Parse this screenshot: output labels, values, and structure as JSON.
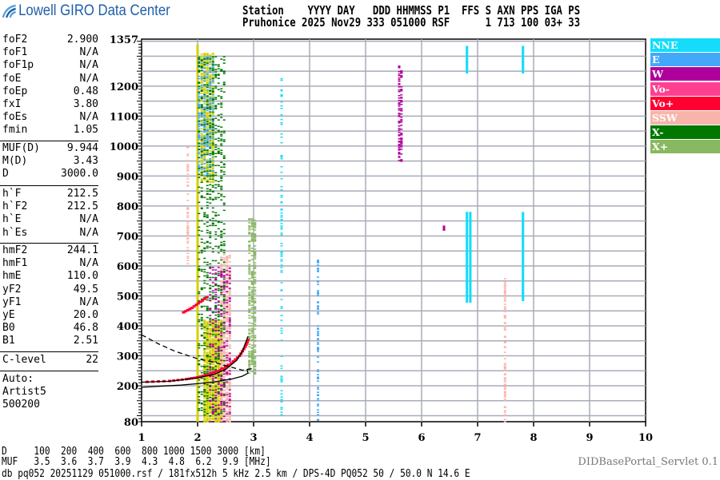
{
  "logo": {
    "text": "Lowell GIRO Data Center",
    "color": "#1f5fa8"
  },
  "header": {
    "line1": "Station    YYYY DAY   DDD HHMMSS P1  FFS S AXN PPS IGA PS",
    "line2": "Pruhonice 2025 Nov29 333 051000 RSF      1 713 100 03+ 33"
  },
  "params": [
    {
      "label": "foF2",
      "value": "2.900"
    },
    {
      "label": "foF1",
      "value": "N/A"
    },
    {
      "label": "foF1p",
      "value": "N/A"
    },
    {
      "label": "foE",
      "value": "N/A"
    },
    {
      "label": "foEp",
      "value": "0.48"
    },
    {
      "label": "fxI",
      "value": "3.80"
    },
    {
      "label": "foEs",
      "value": "N/A"
    },
    {
      "label": "fmin",
      "value": "1.05"
    },
    {
      "label": "MUF(D)",
      "value": "9.944"
    },
    {
      "label": "M(D)",
      "value": "3.43"
    },
    {
      "label": "D",
      "value": "3000.0"
    },
    {
      "label": "h`F",
      "value": "212.5"
    },
    {
      "label": "h`F2",
      "value": "212.5"
    },
    {
      "label": "h`E",
      "value": "N/A"
    },
    {
      "label": "h`Es",
      "value": "N/A"
    },
    {
      "label": "hmF2",
      "value": "244.1"
    },
    {
      "label": "hmF1",
      "value": "N/A"
    },
    {
      "label": "hmE",
      "value": "110.0"
    },
    {
      "label": "yF2",
      "value": "49.5"
    },
    {
      "label": "yF1",
      "value": "N/A"
    },
    {
      "label": "yE",
      "value": "20.0"
    },
    {
      "label": "B0",
      "value": "46.8"
    },
    {
      "label": "B1",
      "value": "2.51"
    },
    {
      "label": "C-level",
      "value": "22"
    }
  ],
  "autoscaling": [
    "Auto:",
    "Artist5",
    "500200"
  ],
  "legend": [
    {
      "label": "NNE",
      "color": "#14dcfa"
    },
    {
      "label": "E",
      "color": "#44a8f8"
    },
    {
      "label": "W",
      "color": "#b0009c"
    },
    {
      "label": "Vo-",
      "color": "#ff4090"
    },
    {
      "label": "Vo+",
      "color": "#ff0030"
    },
    {
      "label": "SSW",
      "color": "#f8b4aa"
    },
    {
      "label": "X-",
      "color": "#007800"
    },
    {
      "label": "X+",
      "color": "#88b860"
    }
  ],
  "bottom": {
    "d_row": "D     100  200  400  600  800 1000 1500 3000 [km]",
    "muf_row": "MUF   3.5  3.6  3.7  3.9  4.3  4.8  6.2  9.9 [MHz]",
    "info": "db pq052 20251129 051000.rsf / 181fx512h 5 kHz 2.5 km / DPS-4D PQ052 50 / 50.0 N 14.6 E",
    "servlet": "DIDBasePortal_Servlet 0.1"
  },
  "chart_data": {
    "type": "scatter",
    "xlim": [
      1,
      10
    ],
    "ylim": [
      80,
      1357
    ],
    "x_ticks": [
      "1",
      "2",
      "3",
      "4",
      "5",
      "6",
      "7",
      "8",
      "9",
      "10"
    ],
    "y_ticks": [
      "1357",
      "1200",
      "1100",
      "1000",
      "900",
      "800",
      "700",
      "600",
      "500",
      "400",
      "300",
      "200",
      "80"
    ],
    "grid": true,
    "legend_placement": "right",
    "extra_echo_color": "#d4d000",
    "echo_streaks": [
      {
        "pol": "yellow",
        "f": [
          1.97,
          2.03
        ],
        "h": [
          80,
          1340
        ],
        "density": 1.0
      },
      {
        "pol": "yellow",
        "f": [
          2.05,
          2.3
        ],
        "h": [
          880,
          1310
        ],
        "density": 0.6
      },
      {
        "pol": "yellow",
        "f": [
          2.1,
          2.45
        ],
        "h": [
          80,
          420
        ],
        "density": 0.8
      },
      {
        "pol": "SSW",
        "f": [
          2.4,
          2.6
        ],
        "h": [
          80,
          640
        ],
        "density": 0.5
      },
      {
        "pol": "SSW",
        "f": [
          1.8,
          1.85
        ],
        "h": [
          600,
          1000
        ],
        "density": 0.3
      },
      {
        "pol": "E",
        "f": [
          2.0,
          2.3
        ],
        "h": [
          900,
          1300
        ],
        "density": 0.3
      },
      {
        "pol": "X-",
        "f": [
          2.0,
          2.5
        ],
        "h": [
          100,
          1300
        ],
        "density": 0.15
      },
      {
        "pol": "W",
        "f": [
          2.2,
          2.6
        ],
        "h": [
          80,
          600
        ],
        "density": 0.15
      },
      {
        "pol": "NNE",
        "f": [
          3.47,
          3.53
        ],
        "h": [
          80,
          1230
        ],
        "density": 0.2
      },
      {
        "pol": "X+",
        "f": [
          2.9,
          3.05
        ],
        "h": [
          240,
          760
        ],
        "density": 0.4
      },
      {
        "pol": "E",
        "f": [
          4.12,
          4.18
        ],
        "h": [
          80,
          620
        ],
        "density": 0.25
      },
      {
        "pol": "W",
        "f": [
          5.58,
          5.66
        ],
        "h": [
          950,
          1270
        ],
        "density": 0.4
      },
      {
        "pol": "NNE",
        "f": [
          6.78,
          6.84
        ],
        "h": [
          1245,
          1335
        ],
        "density": 1.0
      },
      {
        "pol": "NNE",
        "f": [
          6.78,
          6.9
        ],
        "h": [
          480,
          780
        ],
        "density": 1.0
      },
      {
        "pol": "NNE",
        "f": [
          7.78,
          7.84
        ],
        "h": [
          1245,
          1335
        ],
        "density": 1.0
      },
      {
        "pol": "NNE",
        "f": [
          7.78,
          7.84
        ],
        "h": [
          485,
          780
        ],
        "density": 1.0
      },
      {
        "pol": "SSW",
        "f": [
          7.47,
          7.51
        ],
        "h": [
          80,
          560
        ],
        "density": 0.4
      },
      {
        "pol": "W",
        "f": [
          6.38,
          6.42
        ],
        "h": [
          720,
          735
        ],
        "density": 1.0
      }
    ],
    "o_trace": {
      "pol": "Vo+",
      "points": [
        [
          1.1,
          213
        ],
        [
          1.5,
          216
        ],
        [
          1.8,
          222
        ],
        [
          2.0,
          228
        ],
        [
          2.2,
          238
        ],
        [
          2.4,
          252
        ],
        [
          2.6,
          275
        ],
        [
          2.75,
          300
        ],
        [
          2.85,
          330
        ],
        [
          2.92,
          360
        ]
      ]
    },
    "es_trace": {
      "pol": "Vo+",
      "points": [
        [
          1.75,
          445
        ],
        [
          1.9,
          460
        ],
        [
          2.05,
          480
        ],
        [
          2.2,
          500
        ]
      ]
    },
    "profile_lines": [
      {
        "style": "solid",
        "points": [
          [
            1.0,
            212
          ],
          [
            1.5,
            215
          ],
          [
            2.0,
            226
          ],
          [
            2.3,
            238
          ],
          [
            2.5,
            255
          ],
          [
            2.7,
            285
          ],
          [
            2.8,
            315
          ],
          [
            2.9,
            365
          ]
        ]
      },
      {
        "style": "solid",
        "points": [
          [
            1.0,
            195
          ],
          [
            1.3,
            198
          ],
          [
            1.7,
            202
          ],
          [
            2.0,
            207
          ],
          [
            2.3,
            213
          ],
          [
            2.6,
            222
          ],
          [
            2.8,
            232
          ],
          [
            2.9,
            242
          ],
          [
            2.88,
            255
          ]
        ]
      },
      {
        "style": "dashed",
        "points": [
          [
            1.0,
            370
          ],
          [
            1.3,
            340
          ],
          [
            1.6,
            315
          ],
          [
            2.0,
            290
          ],
          [
            2.3,
            278
          ],
          [
            2.6,
            262
          ],
          [
            2.8,
            252
          ],
          [
            3.0,
            258
          ]
        ]
      }
    ]
  }
}
